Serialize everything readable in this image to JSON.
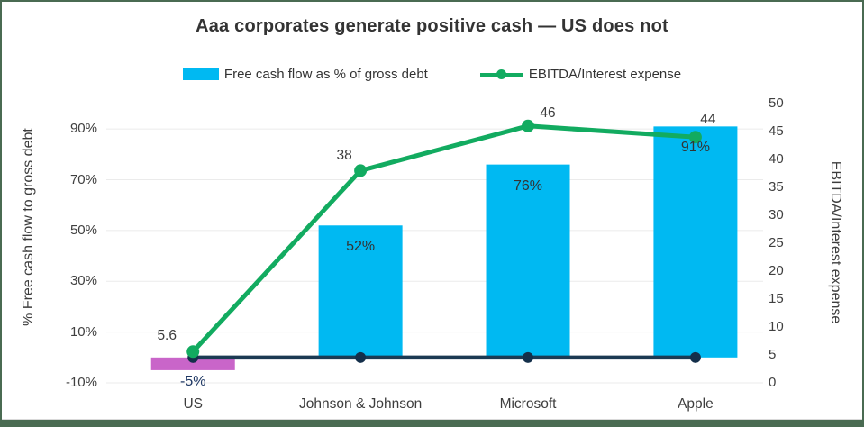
{
  "title": "Aaa corporates generate positive cash — US does not",
  "legend": [
    {
      "label": "Free cash flow as % of gross debt",
      "type": "bar-swatch",
      "color": "#00b9f2"
    },
    {
      "label": "EBITDA/Interest expense",
      "type": "line-swatch",
      "color": "#12ab60"
    }
  ],
  "chart_data": {
    "type": "bar",
    "subtype": "combo bar + line, dual axis",
    "title": "Aaa corporates generate positive cash — US does not",
    "categories": [
      "US",
      "Johnson & Johnson",
      "Microsoft",
      "Apple"
    ],
    "series": [
      {
        "name": "Free cash flow as % of gross debt",
        "type": "bar",
        "axis": "left",
        "values": [
          -5,
          52,
          76,
          91
        ],
        "data_labels": [
          "-5%",
          "52%",
          "76%",
          "91%"
        ],
        "bar_colors": [
          "#c965c9",
          "#00b9f2",
          "#00b9f2",
          "#00b9f2"
        ]
      },
      {
        "name": "EBITDA/Interest expense",
        "type": "line",
        "axis": "right",
        "values": [
          5.6,
          38,
          46,
          44
        ],
        "data_labels": [
          "5.6",
          "38",
          "46",
          "44"
        ],
        "color": "#12ab60"
      },
      {
        "name": "zero-baseline",
        "type": "line",
        "axis": "left",
        "values": [
          0,
          0,
          0,
          0
        ],
        "data_labels": [
          "",
          "",
          "",
          ""
        ],
        "color": "#1b3a53",
        "marker_color": "#142f4a"
      }
    ],
    "left_axis": {
      "title": "% Free cash flow to gross debt",
      "min": -10,
      "max": 100,
      "ticks": [
        -10,
        10,
        30,
        50,
        70,
        90
      ],
      "tick_labels": [
        "-10%",
        "10%",
        "30%",
        "50%",
        "70%",
        "90%"
      ]
    },
    "right_axis": {
      "title": "EBITDA/Interest expense",
      "min": 0,
      "max": 50,
      "step": 5
    },
    "grid": true,
    "legend_position": "top",
    "colors": {
      "grid": "#ebebeb",
      "bar_cyan": "#00b9f2",
      "bar_magenta": "#c965c9",
      "line_green": "#12ab60",
      "line_navy": "#1b3a53",
      "neg_label_navy": "#1f3864",
      "frame_green": "#4a6b52"
    }
  }
}
